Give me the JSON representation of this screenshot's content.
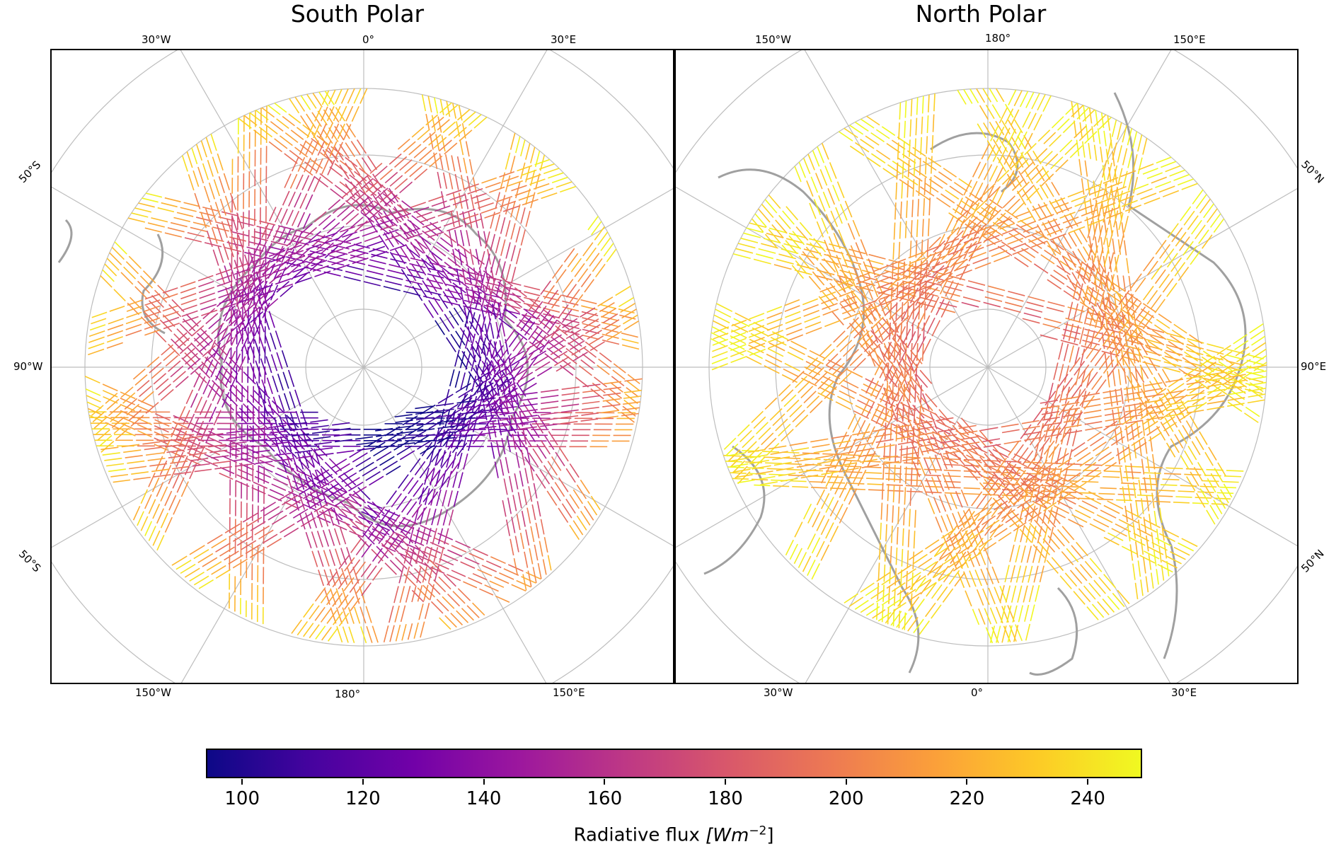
{
  "colormap": [
    "#0d0887",
    "#46039f",
    "#7201a8",
    "#9c179e",
    "#bd3786",
    "#d8576b",
    "#ed7953",
    "#fb9f3a",
    "#fdca26",
    "#f0f921"
  ],
  "colorbar": {
    "min": 94,
    "max": 249,
    "ticks": [
      "100",
      "120",
      "140",
      "160",
      "180",
      "200",
      "220",
      "240"
    ],
    "label": "Radiative flux",
    "label_unit_text": "[Wm",
    "label_unit_exp": "−2",
    "label_unit_close": "]"
  },
  "panels": [
    {
      "id": "south",
      "title": "South Polar",
      "hemisphere": "south",
      "projection": "polar stereographic",
      "pole_data_gap": true,
      "coastline_color": "#a0a0a0",
      "top_labels": [
        "30°W",
        "0°",
        "30°E"
      ],
      "bottom_labels": [
        "150°W",
        "180°",
        "150°E"
      ],
      "left_labels": [
        "50°S",
        "90°W",
        "50°S"
      ],
      "right_labels": [],
      "flux_trend": "lowest near the pole (~100), rising to ~240 at outer edges"
    },
    {
      "id": "north",
      "title": "North Polar",
      "hemisphere": "north",
      "projection": "polar stereographic",
      "pole_data_gap": true,
      "coastline_color": "#a0a0a0",
      "top_labels": [
        "150°W",
        "180°",
        "150°E"
      ],
      "bottom_labels": [
        "30°W",
        "0°",
        "30°E"
      ],
      "left_labels": [],
      "right_labels": [
        "50°N",
        "90°E",
        "50°N"
      ],
      "flux_trend": "~190-210 near the pole, up to ~245 at outer edges"
    }
  ]
}
